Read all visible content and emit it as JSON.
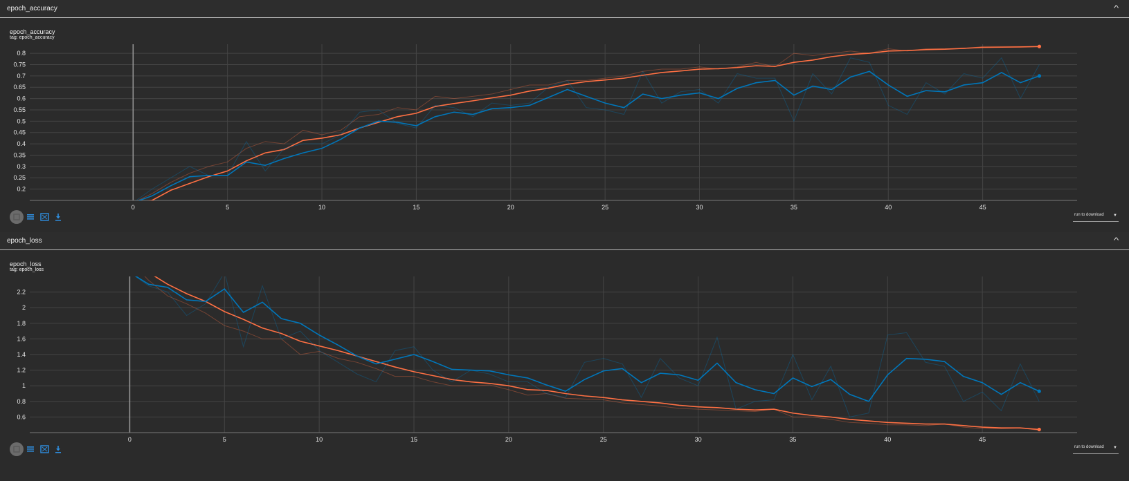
{
  "sections": [
    {
      "header": "epoch_accuracy",
      "title": "epoch_accuracy",
      "tag": "tag: epoch_accuracy"
    },
    {
      "header": "epoch_loss",
      "title": "epoch_loss",
      "tag": "tag: epoch_loss"
    }
  ],
  "toolbar": {
    "download_label": "run to download"
  },
  "colors": {
    "orange": "#ff7043",
    "blue": "#0077bb"
  },
  "chart_data": [
    {
      "type": "line",
      "title": "epoch_accuracy",
      "xlim": [
        -6.5,
        50
      ],
      "ylim": [
        0.15,
        0.84
      ],
      "xticks": [
        0,
        5,
        10,
        15,
        20,
        25,
        30,
        35,
        40,
        45
      ],
      "yticks": [
        0.2,
        0.25,
        0.3,
        0.35,
        0.4,
        0.45,
        0.5,
        0.55,
        0.6,
        0.65,
        0.7,
        0.75,
        0.8
      ],
      "grid": true,
      "series": [
        {
          "color": "#ff7043",
          "smoothed": [
            0.14,
            0.15,
            0.195,
            0.225,
            0.255,
            0.28,
            0.325,
            0.36,
            0.375,
            0.415,
            0.425,
            0.44,
            0.47,
            0.495,
            0.52,
            0.535,
            0.565,
            0.578,
            0.59,
            0.603,
            0.615,
            0.633,
            0.646,
            0.663,
            0.675,
            0.682,
            0.69,
            0.703,
            0.715,
            0.722,
            0.73,
            0.732,
            0.737,
            0.745,
            0.742,
            0.76,
            0.77,
            0.785,
            0.795,
            0.8,
            0.81,
            0.812,
            0.816,
            0.818,
            0.822,
            0.826,
            0.827,
            0.828,
            0.83
          ],
          "raw": [
            0.14,
            0.18,
            0.23,
            0.27,
            0.3,
            0.32,
            0.38,
            0.41,
            0.4,
            0.46,
            0.44,
            0.46,
            0.52,
            0.53,
            0.56,
            0.55,
            0.61,
            0.6,
            0.61,
            0.62,
            0.64,
            0.66,
            0.66,
            0.68,
            0.68,
            0.69,
            0.7,
            0.72,
            0.73,
            0.73,
            0.74,
            0.73,
            0.74,
            0.76,
            0.74,
            0.8,
            0.79,
            0.8,
            0.81,
            0.8,
            0.82,
            0.81,
            0.82,
            0.82,
            0.82,
            0.83,
            0.83,
            0.83,
            0.83
          ]
        },
        {
          "color": "#0077bb",
          "smoothed": [
            0.14,
            0.17,
            0.215,
            0.255,
            0.26,
            0.26,
            0.32,
            0.305,
            0.335,
            0.36,
            0.38,
            0.42,
            0.47,
            0.5,
            0.495,
            0.48,
            0.52,
            0.54,
            0.53,
            0.555,
            0.56,
            0.57,
            0.605,
            0.64,
            0.61,
            0.58,
            0.56,
            0.62,
            0.6,
            0.615,
            0.625,
            0.6,
            0.645,
            0.67,
            0.68,
            0.615,
            0.655,
            0.64,
            0.695,
            0.72,
            0.66,
            0.61,
            0.635,
            0.63,
            0.66,
            0.67,
            0.715,
            0.67,
            0.7
          ],
          "raw": [
            0.14,
            0.2,
            0.25,
            0.3,
            0.26,
            0.26,
            0.41,
            0.28,
            0.38,
            0.4,
            0.4,
            0.44,
            0.54,
            0.55,
            0.49,
            0.47,
            0.57,
            0.56,
            0.52,
            0.58,
            0.57,
            0.58,
            0.65,
            0.68,
            0.56,
            0.55,
            0.53,
            0.72,
            0.58,
            0.63,
            0.64,
            0.58,
            0.71,
            0.69,
            0.69,
            0.5,
            0.71,
            0.62,
            0.78,
            0.76,
            0.57,
            0.53,
            0.67,
            0.62,
            0.71,
            0.69,
            0.78,
            0.6,
            0.75
          ]
        }
      ]
    },
    {
      "type": "line",
      "title": "epoch_loss",
      "xlim": [
        -6.3,
        50
      ],
      "ylim": [
        0.4,
        2.4
      ],
      "xticks": [
        0,
        5,
        10,
        15,
        20,
        25,
        30,
        35,
        40,
        45
      ],
      "yticks": [
        0.6,
        0.8,
        1,
        1.2,
        1.4,
        1.6,
        1.8,
        2,
        2.2
      ],
      "grid": true,
      "series": [
        {
          "color": "#ff7043",
          "smoothed": [
            2.6,
            2.45,
            2.3,
            2.18,
            2.08,
            1.95,
            1.85,
            1.74,
            1.67,
            1.57,
            1.51,
            1.45,
            1.38,
            1.31,
            1.24,
            1.18,
            1.13,
            1.08,
            1.05,
            1.03,
            1,
            0.95,
            0.94,
            0.9,
            0.87,
            0.85,
            0.82,
            0.8,
            0.78,
            0.75,
            0.73,
            0.72,
            0.7,
            0.69,
            0.7,
            0.65,
            0.62,
            0.6,
            0.57,
            0.55,
            0.53,
            0.52,
            0.51,
            0.51,
            0.49,
            0.47,
            0.46,
            0.46,
            0.44
          ],
          "raw": [
            2.6,
            2.35,
            2.15,
            2.05,
            1.93,
            1.77,
            1.7,
            1.6,
            1.6,
            1.4,
            1.44,
            1.35,
            1.3,
            1.22,
            1.12,
            1.12,
            1.05,
            1,
            1,
            1.01,
            0.95,
            0.88,
            0.9,
            0.84,
            0.83,
            0.82,
            0.78,
            0.76,
            0.74,
            0.71,
            0.7,
            0.69,
            0.68,
            0.67,
            0.7,
            0.6,
            0.6,
            0.57,
            0.53,
            0.52,
            0.5,
            0.5,
            0.49,
            0.51,
            0.47,
            0.45,
            0.45,
            0.46,
            0.43
          ]
        },
        {
          "color": "#0077bb",
          "smoothed": [
            2.45,
            2.3,
            2.26,
            2.1,
            2.08,
            2.24,
            1.94,
            2.07,
            1.86,
            1.8,
            1.65,
            1.52,
            1.38,
            1.28,
            1.34,
            1.4,
            1.31,
            1.21,
            1.2,
            1.19,
            1.14,
            1.1,
            1.01,
            0.93,
            1.08,
            1.19,
            1.22,
            1.04,
            1.16,
            1.14,
            1.07,
            1.29,
            1.04,
            0.95,
            0.9,
            1.1,
            0.99,
            1.08,
            0.89,
            0.8,
            1.14,
            1.35,
            1.34,
            1.31,
            1.12,
            1.04,
            0.89,
            1.04,
            0.93
          ],
          "raw": [
            2.45,
            2.28,
            2.2,
            1.9,
            2.05,
            2.45,
            1.5,
            2.28,
            1.6,
            1.7,
            1.45,
            1.3,
            1.15,
            1.05,
            1.45,
            1.5,
            1.2,
            1.05,
            1.2,
            1.15,
            1.05,
            1.05,
            0.9,
            0.85,
            1.3,
            1.35,
            1.28,
            0.85,
            1.35,
            1.1,
            1,
            1.62,
            0.7,
            0.8,
            0.82,
            1.4,
            0.82,
            1.25,
            0.6,
            0.65,
            1.65,
            1.68,
            1.3,
            1.25,
            0.8,
            0.92,
            0.68,
            1.28,
            0.8
          ]
        }
      ]
    }
  ]
}
